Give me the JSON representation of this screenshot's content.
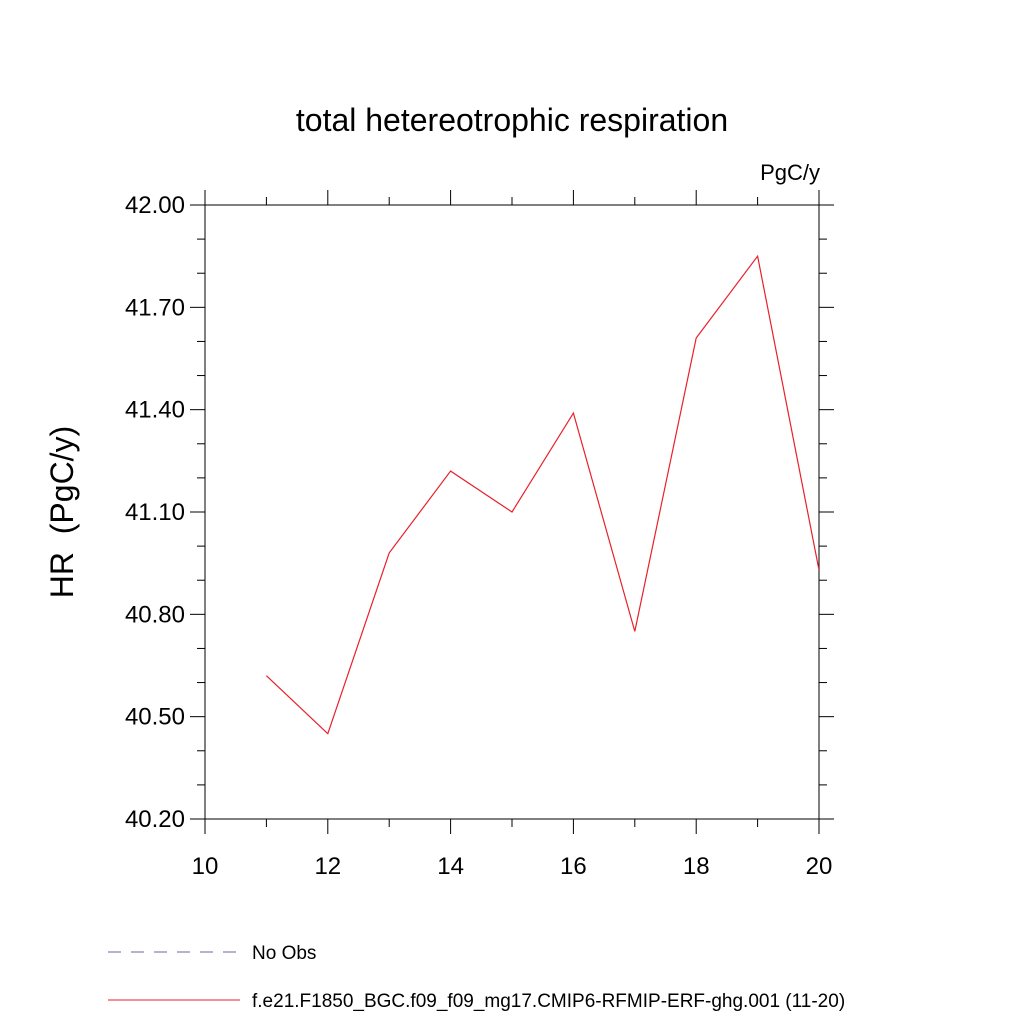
{
  "chart_data": {
    "type": "line",
    "title": "total hetereotrophic respiration",
    "units": "PgC/y",
    "xlabel": "",
    "ylabel": "HR  (PgC/y)",
    "xlim": [
      10,
      20
    ],
    "ylim": [
      40.2,
      42.0
    ],
    "xticks": [
      10,
      12,
      14,
      16,
      18,
      20
    ],
    "xtick_labels": [
      "10",
      "12",
      "14",
      "16",
      "18",
      "20"
    ],
    "yticks": [
      40.2,
      40.5,
      40.8,
      41.1,
      41.4,
      41.7,
      42.0
    ],
    "ytick_labels": [
      "40.20",
      "40.50",
      "40.80",
      "41.10",
      "41.40",
      "41.70",
      "42.00"
    ],
    "grid": false,
    "legend_position": "bottom-left",
    "series": [
      {
        "name": "No Obs",
        "color": "#6a6aa0",
        "style": "dashed",
        "x": [],
        "values": []
      },
      {
        "name": "f.e21.F1850_BGC.f09_f09_mg17.CMIP6-RFMIP-ERF-ghg.001 (11-20)",
        "color": "#e8202a",
        "style": "solid",
        "x": [
          11,
          12,
          13,
          14,
          15,
          16,
          17,
          18,
          19,
          20
        ],
        "values": [
          40.62,
          40.45,
          40.98,
          41.22,
          41.1,
          41.39,
          40.75,
          41.61,
          41.85,
          40.93
        ]
      }
    ]
  }
}
